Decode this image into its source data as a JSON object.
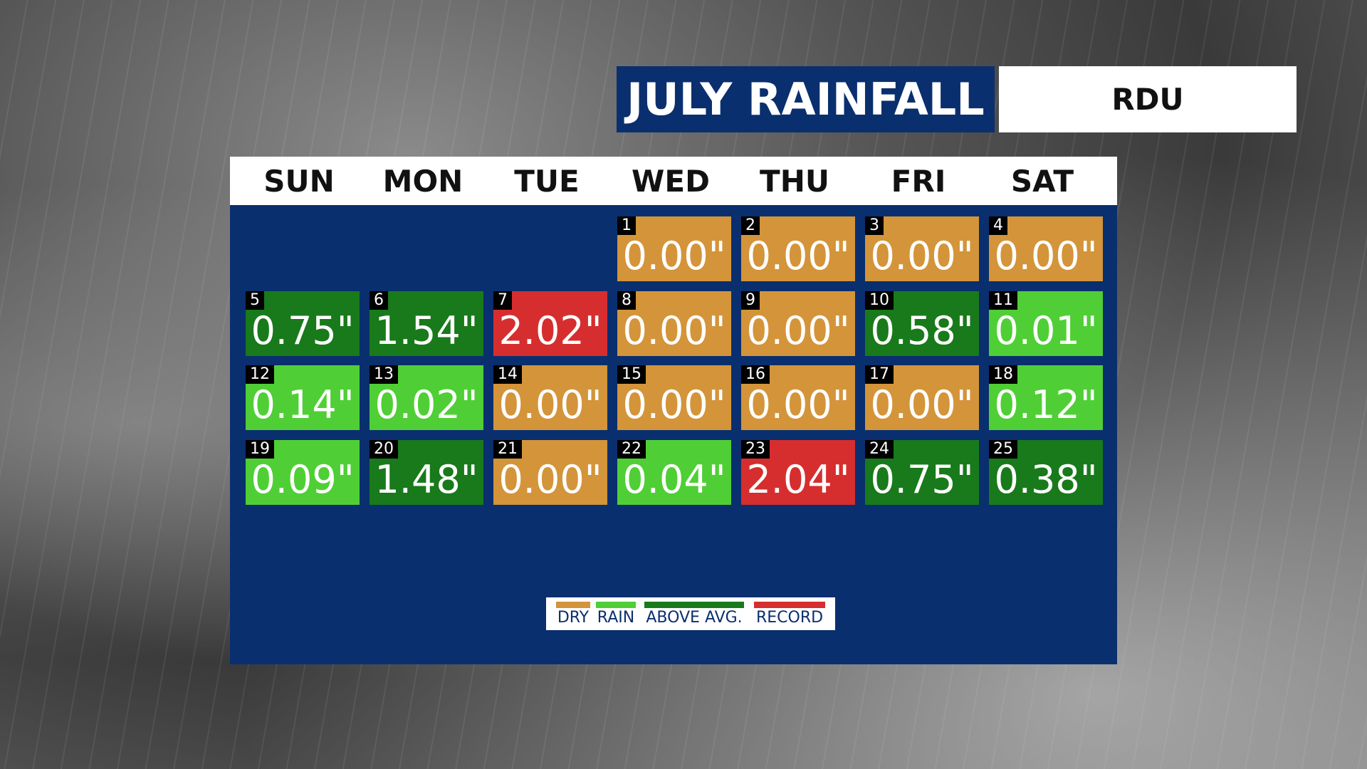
{
  "header": {
    "title": "JULY RAINFALL",
    "location": "RDU"
  },
  "weekdays": [
    "SUN",
    "MON",
    "TUE",
    "WED",
    "THU",
    "FRI",
    "SAT"
  ],
  "weeks": [
    [
      null,
      null,
      null,
      {
        "day": "1",
        "value": "0.00\"",
        "color": "#d4943a"
      },
      {
        "day": "2",
        "value": "0.00\"",
        "color": "#d4943a"
      },
      {
        "day": "3",
        "value": "0.00\"",
        "color": "#d4943a"
      },
      {
        "day": "4",
        "value": "0.00\"",
        "color": "#d4943a"
      }
    ],
    [
      {
        "day": "5",
        "value": "0.75\"",
        "color": "#187a1a"
      },
      {
        "day": "6",
        "value": "1.54\"",
        "color": "#187a1a"
      },
      {
        "day": "7",
        "value": "2.02\"",
        "color": "#d62e2e"
      },
      {
        "day": "8",
        "value": "0.00\"",
        "color": "#d4943a"
      },
      {
        "day": "9",
        "value": "0.00\"",
        "color": "#d4943a"
      },
      {
        "day": "10",
        "value": "0.58\"",
        "color": "#187a1a"
      },
      {
        "day": "11",
        "value": "0.01\"",
        "color": "#4fcf35"
      }
    ],
    [
      {
        "day": "12",
        "value": "0.14\"",
        "color": "#4fcf35"
      },
      {
        "day": "13",
        "value": "0.02\"",
        "color": "#4fcf35"
      },
      {
        "day": "14",
        "value": "0.00\"",
        "color": "#d4943a"
      },
      {
        "day": "15",
        "value": "0.00\"",
        "color": "#d4943a"
      },
      {
        "day": "16",
        "value": "0.00\"",
        "color": "#d4943a"
      },
      {
        "day": "17",
        "value": "0.00\"",
        "color": "#d4943a"
      },
      {
        "day": "18",
        "value": "0.12\"",
        "color": "#4fcf35"
      }
    ],
    [
      {
        "day": "19",
        "value": "0.09\"",
        "color": "#4fcf35"
      },
      {
        "day": "20",
        "value": "1.48\"",
        "color": "#187a1a"
      },
      {
        "day": "21",
        "value": "0.00\"",
        "color": "#d4943a"
      },
      {
        "day": "22",
        "value": "0.04\"",
        "color": "#4fcf35"
      },
      {
        "day": "23",
        "value": "2.04\"",
        "color": "#d62e2e"
      },
      {
        "day": "24",
        "value": "0.75\"",
        "color": "#187a1a"
      },
      {
        "day": "25",
        "value": "0.38\"",
        "color": "#187a1a"
      }
    ]
  ],
  "legend": [
    {
      "label": "DRY",
      "color": "#d4943a"
    },
    {
      "label": "RAIN",
      "color": "#4fcf35"
    },
    {
      "label": "ABOVE AVG.",
      "color": "#187a1a"
    },
    {
      "label": "RECORD",
      "color": "#d62e2e"
    }
  ]
}
